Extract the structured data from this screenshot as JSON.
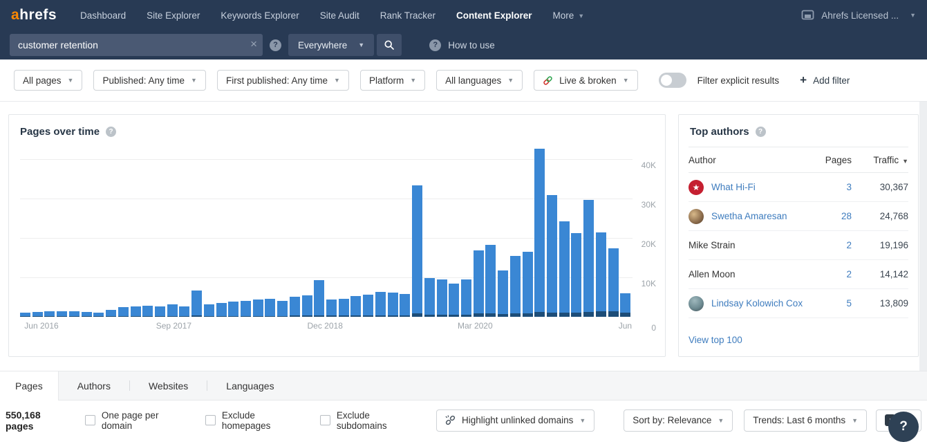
{
  "colors": {
    "nav_bg": "#283a54",
    "brand_orange": "#ff8800",
    "link_blue": "#3e7cbe",
    "bar_blue": "#3a87d4",
    "bar_dark_blue": "#1d4d78",
    "avatar_red": "#c51f30"
  },
  "nav": {
    "logo_a": "a",
    "logo_rest": "hrefs",
    "items": [
      "Dashboard",
      "Site Explorer",
      "Keywords Explorer",
      "Site Audit",
      "Rank Tracker",
      "Content Explorer",
      "More"
    ],
    "active_item": "Content Explorer",
    "account_label": "Ahrefs Licensed ..."
  },
  "search": {
    "query": "customer retention",
    "scope": "Everywhere",
    "help_link": "How to use"
  },
  "filter_bar": {
    "all_pages": "All pages",
    "published": "Published: Any time",
    "first_published": "First published: Any time",
    "platform": "Platform",
    "languages": "All languages",
    "live_broken": "Live & broken",
    "explicit_toggle_label": "Filter explicit results",
    "explicit_toggle_state": "off",
    "add_filter": "Add filter"
  },
  "chart": {
    "title": "Pages over time"
  },
  "chart_data": {
    "type": "bar",
    "title": "Pages over time",
    "unit": "thousands of pages per period",
    "ylim": [
      0,
      43
    ],
    "gridlines": [
      10,
      20,
      30,
      40
    ],
    "y_tick_labels": [
      "10K",
      "20K",
      "30K",
      "40K"
    ],
    "zero_label": "0",
    "grid": true,
    "legend_position": "none",
    "x_ticks": [
      {
        "label": "Jun 2016",
        "pos": 0.035
      },
      {
        "label": "Sep 2017",
        "pos": 0.251
      },
      {
        "label": "Dec 2018",
        "pos": 0.498
      },
      {
        "label": "Mar 2020",
        "pos": 0.743
      },
      {
        "label": "Jun",
        "pos": 0.988
      }
    ],
    "series": [
      {
        "name": "pages total",
        "color": "#3a87d4",
        "values": [
          1.1,
          1.3,
          1.5,
          1.5,
          1.5,
          1.3,
          1.1,
          1.8,
          2.5,
          2.7,
          2.9,
          2.7,
          3.1,
          2.7,
          6.7,
          3.1,
          3.6,
          3.8,
          4.0,
          4.4,
          4.5,
          4.0,
          5.1,
          5.5,
          9.3,
          4.4,
          4.5,
          5.3,
          5.6,
          6.4,
          6.2,
          5.8,
          33.3,
          9.8,
          9.5,
          8.5,
          9.5,
          16.9,
          18.2,
          11.8,
          15.5,
          16.5,
          42.7,
          30.9,
          24.2,
          21.3,
          29.6,
          21.5,
          17.3,
          6.0
        ]
      },
      {
        "name": "broken pages (dark bottom segment)",
        "color": "#1d4d78",
        "values": [
          0.1,
          0.1,
          0.1,
          0.1,
          0.1,
          0.1,
          0.1,
          0.1,
          0.1,
          0.15,
          0.15,
          0.15,
          0.2,
          0.2,
          0.3,
          0.2,
          0.2,
          0.2,
          0.2,
          0.25,
          0.25,
          0.25,
          0.3,
          0.3,
          0.4,
          0.3,
          0.3,
          0.3,
          0.35,
          0.4,
          0.4,
          0.4,
          0.9,
          0.5,
          0.5,
          0.5,
          0.55,
          0.8,
          0.9,
          0.7,
          0.8,
          0.85,
          1.2,
          1.1,
          1.0,
          1.0,
          1.3,
          1.4,
          1.5,
          1.0
        ]
      }
    ]
  },
  "top_authors": {
    "title": "Top authors",
    "columns": {
      "author": "Author",
      "pages": "Pages",
      "traffic": "Traffic"
    },
    "rows": [
      {
        "name": "What Hi-Fi",
        "pages": "3",
        "traffic": "30,367"
      },
      {
        "name": "Swetha Amaresan",
        "pages": "28",
        "traffic": "24,768"
      },
      {
        "name": "Mike Strain",
        "pages": "2",
        "traffic": "19,196"
      },
      {
        "name": "Allen Moon",
        "pages": "2",
        "traffic": "14,142"
      },
      {
        "name": "Lindsay Kolowich Cox",
        "pages": "5",
        "traffic": "13,809"
      }
    ],
    "view_all": "View top 100"
  },
  "tabs": {
    "items": [
      "Pages",
      "Authors",
      "Websites",
      "Languages"
    ],
    "active": "Pages"
  },
  "toolbar": {
    "result_count": "550,168 pages",
    "checkbox_1": "One page per domain",
    "checkbox_2": "Exclude homepages",
    "checkbox_3": "Exclude subdomains",
    "highlight_unlinked": "Highlight unlinked domains",
    "sort_by": "Sort by: Relevance",
    "trends": "Trends: Last 6 months",
    "export_label": "Ex",
    "help_button": "?"
  }
}
